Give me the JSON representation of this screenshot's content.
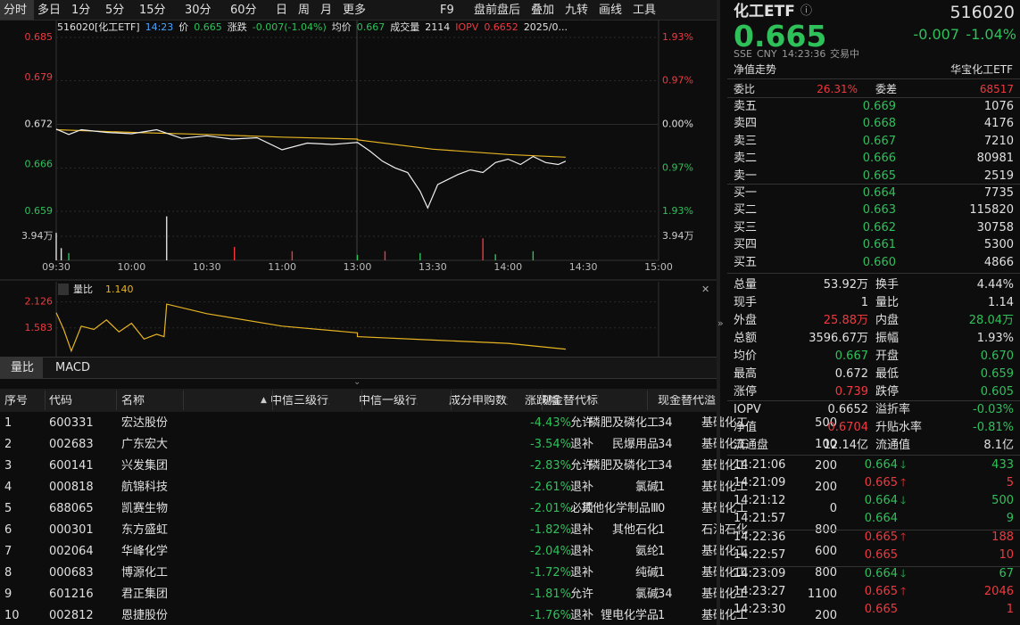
{
  "toolbar": {
    "periods": [
      "分时",
      "多日",
      "1分",
      "5分",
      "15分",
      "30分",
      "60分",
      "日",
      "周",
      "月",
      "更多"
    ],
    "tools": [
      "F9",
      "盘前盘后",
      "叠加",
      "九转",
      "画线",
      "工具"
    ]
  },
  "chart": {
    "info": [
      "516020[化工ETF]",
      "14:23",
      "价",
      "0.665",
      "涨跌",
      "-0.007(-1.04%)",
      "均价",
      "0.667",
      "成交量",
      "2114",
      "IOPV",
      "0.6652",
      "2025/0..."
    ],
    "info_colors": [
      "white",
      "blue",
      "white",
      "green",
      "white",
      "green",
      "white",
      "green",
      "white",
      "white",
      "red",
      "red",
      "white"
    ],
    "ylim": [
      0.659,
      0.685
    ],
    "yticks": [
      0.659,
      0.666,
      0.672,
      0.679,
      0.685
    ],
    "y2lim": [
      -1.93,
      1.93
    ],
    "y2ticks": [
      {
        "value": -1.93,
        "label": "1.93%"
      },
      {
        "value": -0.97,
        "label": "0.97%"
      },
      {
        "value": 0,
        "label": "0.00%"
      },
      {
        "value": 0.97,
        "label": "0.97%"
      },
      {
        "value": 1.93,
        "label": "1.93%"
      }
    ],
    "xticks": [
      "09:30",
      "10:00",
      "10:30",
      "11:00",
      "13:00",
      "13:30",
      "14:00",
      "14:30",
      "15:00"
    ],
    "price": {
      "color": "#f0f0f0",
      "x": [
        "09:30",
        "09:35",
        "09:40",
        "09:50",
        "10:00",
        "10:10",
        "10:20",
        "10:30",
        "10:40",
        "10:50",
        "11:00",
        "11:10",
        "11:20",
        "11:30",
        "13:05",
        "13:10",
        "13:15",
        "13:20",
        "13:25",
        "13:28",
        "13:32",
        "13:40",
        "13:45",
        "13:50",
        "13:55",
        "14:00",
        "14:05",
        "14:10",
        "14:15",
        "14:20",
        "14:23"
      ],
      "values": [
        0.6713,
        0.6705,
        0.6712,
        0.6708,
        0.6706,
        0.6712,
        0.6699,
        0.6703,
        0.6698,
        0.67,
        0.6682,
        0.6692,
        0.669,
        0.6693,
        0.668,
        0.6665,
        0.6655,
        0.6648,
        0.662,
        0.6595,
        0.663,
        0.6645,
        0.6652,
        0.6648,
        0.6663,
        0.6668,
        0.666,
        0.6672,
        0.6663,
        0.666,
        0.6665
      ]
    },
    "avg": {
      "color": "#e6b422",
      "x": [
        "09:30",
        "10:00",
        "10:30",
        "11:00",
        "11:30",
        "13:00",
        "13:30",
        "14:00",
        "14:23"
      ],
      "values": [
        0.6712,
        0.6708,
        0.6705,
        0.6701,
        0.6698,
        0.6697,
        0.6683,
        0.6675,
        0.6671
      ]
    },
    "volume": {
      "ylim": [
        0,
        7.88
      ],
      "yticks": [
        {
          "value": 3.94,
          "label": "3.94万"
        }
      ],
      "x": [
        "09:30",
        "09:32",
        "09:35",
        "10:14",
        "10:41",
        "11:04",
        "13:00",
        "13:11",
        "13:25",
        "13:50",
        "13:55",
        "14:10"
      ],
      "values": [
        4.5,
        2,
        1.2,
        7.2,
        2.2,
        1.5,
        0.9,
        1.5,
        1.2,
        3.6,
        1,
        1.5
      ],
      "colors": [
        "#e0e0e0",
        "#e0e0e0",
        "#2ec15a",
        "#e0e0e0",
        "#f0393f",
        "#f0393f",
        "#2ec15a",
        "#f0393f",
        "#2ec15a",
        "#f0393f",
        "#2ec15a",
        "#2ec15a"
      ]
    },
    "ratio": {
      "label": "量比",
      "value": 1.14,
      "value_label": "1.140",
      "color": "#e6b422",
      "ylim": [
        1.02,
        2.51
      ],
      "yticks": [
        1.583,
        2.126
      ],
      "x": [
        "09:30",
        "09:33",
        "09:36",
        "09:40",
        "09:45",
        "09:50",
        "09:55",
        "10:00",
        "10:05",
        "10:10",
        "10:13",
        "10:14",
        "10:30",
        "11:00",
        "11:30",
        "13:00",
        "13:30",
        "14:00",
        "14:23"
      ],
      "values": [
        1.9,
        1.55,
        1.1,
        1.62,
        1.55,
        1.75,
        1.5,
        1.68,
        1.35,
        1.45,
        1.4,
        2.08,
        1.88,
        1.62,
        1.48,
        1.4,
        1.33,
        1.26,
        1.14
      ]
    },
    "tabs": [
      "量比",
      "MACD"
    ]
  },
  "table": {
    "columns": [
      "序号",
      "代码",
      "名称",
      "涨跌幅",
      "中信三级行业",
      "中信一级行业",
      "成分申购数量",
      "现金替代标志",
      "现金替代溢"
    ],
    "rows": [
      [
        "1",
        "600331",
        "宏达股份",
        "-4.43%",
        "磷肥及磷化工",
        "基础化工",
        "500",
        "允许",
        "34"
      ],
      [
        "2",
        "002683",
        "广东宏大",
        "-3.54%",
        "民爆用品",
        "基础化工",
        "100",
        "退补",
        "34"
      ],
      [
        "3",
        "600141",
        "兴发集团",
        "-2.83%",
        "磷肥及磷化工",
        "基础化工",
        "200",
        "允许",
        "34"
      ],
      [
        "4",
        "000818",
        "航锦科技",
        "-2.61%",
        "氯碱",
        "基础化工",
        "200",
        "退补",
        "1"
      ],
      [
        "5",
        "688065",
        "凯赛生物",
        "-2.01%",
        "其他化学制品Ⅲ",
        "基础化工",
        "0",
        "必须",
        "0"
      ],
      [
        "6",
        "000301",
        "东方盛虹",
        "-1.82%",
        "其他石化",
        "石油石化",
        "800",
        "退补",
        "1"
      ],
      [
        "7",
        "002064",
        "华峰化学",
        "-2.04%",
        "氨纶",
        "基础化工",
        "600",
        "退补",
        "1"
      ],
      [
        "8",
        "000683",
        "博源化工",
        "-1.72%",
        "纯碱",
        "基础化工",
        "800",
        "退补",
        "1"
      ],
      [
        "9",
        "601216",
        "君正集团",
        "-1.81%",
        "氯碱",
        "基础化工",
        "1100",
        "允许",
        "34"
      ],
      [
        "10",
        "002812",
        "恩捷股份",
        "-1.76%",
        "锂电化学品",
        "基础化工",
        "200",
        "退补",
        "1"
      ]
    ]
  },
  "quote": {
    "name": "化工ETF",
    "code": "516020",
    "price": "0.665",
    "change": "-0.007",
    "pct": "-1.04%",
    "meta": [
      "SSE",
      "CNY",
      "14:23:36",
      "交易中"
    ],
    "nav_trend": "净值走势",
    "fund": "华宝化工ETF",
    "weibi": [
      "委比",
      "26.31%",
      "委差",
      "68517"
    ],
    "asks": [
      [
        "卖五",
        "0.669",
        "1076"
      ],
      [
        "卖四",
        "0.668",
        "4176"
      ],
      [
        "卖三",
        "0.667",
        "7210"
      ],
      [
        "卖二",
        "0.666",
        "80981"
      ],
      [
        "卖一",
        "0.665",
        "2519"
      ]
    ],
    "bids": [
      [
        "买一",
        "0.664",
        "7735"
      ],
      [
        "买二",
        "0.663",
        "115820"
      ],
      [
        "买三",
        "0.662",
        "30758"
      ],
      [
        "买四",
        "0.661",
        "5300"
      ],
      [
        "买五",
        "0.660",
        "4866"
      ]
    ],
    "stats": [
      {
        "cells": [
          "总量",
          "53.92万",
          "换手",
          "4.44%"
        ],
        "colors": [
          "white",
          "white"
        ]
      },
      {
        "cells": [
          "现手",
          "1",
          "量比",
          "1.14"
        ],
        "colors": [
          "white",
          "white"
        ]
      },
      {
        "cells": [
          "外盘",
          "25.88万",
          "内盘",
          "28.04万"
        ],
        "colors": [
          "red",
          "green"
        ]
      },
      {
        "cells": [
          "总额",
          "3596.67万",
          "振幅",
          "1.93%"
        ],
        "colors": [
          "white",
          "white"
        ]
      },
      {
        "cells": [
          "均价",
          "0.667",
          "开盘",
          "0.670"
        ],
        "colors": [
          "green",
          "green"
        ]
      },
      {
        "cells": [
          "最高",
          "0.672",
          "最低",
          "0.659"
        ],
        "colors": [
          "white",
          "green"
        ]
      },
      {
        "cells": [
          "涨停",
          "0.739",
          "跌停",
          "0.605"
        ],
        "colors": [
          "red",
          "green"
        ]
      }
    ],
    "iopv": [
      {
        "cells": [
          "IOPV",
          "0.6652",
          "溢折率",
          "-0.03%"
        ],
        "colors": [
          "white",
          "green"
        ]
      },
      {
        "cells": [
          "净值",
          "0.6704",
          "升贴水率",
          "-0.81%"
        ],
        "colors": [
          "red",
          "green"
        ]
      },
      {
        "cells": [
          "流通盘",
          "12.14亿",
          "流通值",
          "8.1亿"
        ],
        "colors": [
          "white",
          "white"
        ]
      }
    ],
    "ticks": [
      {
        "cells": [
          "14:21:06",
          "0.664",
          "433"
        ],
        "color": "green",
        "dir": "down"
      },
      {
        "cells": [
          "14:21:09",
          "0.665",
          "5"
        ],
        "color": "red",
        "dir": "up"
      },
      {
        "cells": [
          "14:21:12",
          "0.664",
          "500"
        ],
        "color": "green",
        "dir": "down"
      },
      {
        "cells": [
          "14:21:57",
          "0.664",
          "9"
        ],
        "color": "green"
      },
      {
        "cells": [
          "14:22:36",
          "0.665",
          "188"
        ],
        "color": "red",
        "dir": "up"
      },
      {
        "cells": [
          "14:22:57",
          "0.665",
          "10"
        ],
        "color": "red"
      },
      {
        "cells": [
          "14:23:09",
          "0.664",
          "67"
        ],
        "color": "green",
        "dir": "down"
      },
      {
        "cells": [
          "14:23:27",
          "0.665",
          "2046"
        ],
        "color": "red",
        "dir": "up"
      },
      {
        "cells": [
          "14:23:30",
          "0.665",
          "1"
        ],
        "color": "red"
      }
    ]
  }
}
